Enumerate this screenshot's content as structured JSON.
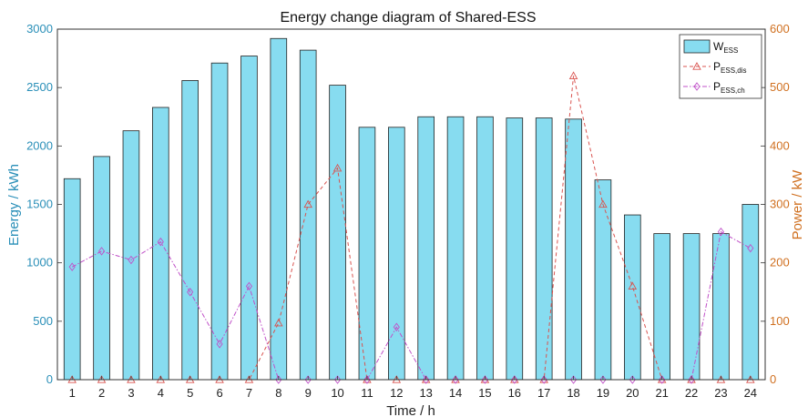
{
  "chart_data": {
    "type": "bar",
    "title": "Energy change diagram of Shared-ESS",
    "xlabel": "Time / h",
    "ylabel_left": "Energy / kWh",
    "ylabel_right": "Power / kW",
    "categories": [
      "1",
      "2",
      "3",
      "4",
      "5",
      "6",
      "7",
      "8",
      "9",
      "10",
      "11",
      "12",
      "13",
      "14",
      "15",
      "16",
      "17",
      "18",
      "19",
      "20",
      "21",
      "22",
      "23",
      "24"
    ],
    "ylim_left": [
      0,
      3000
    ],
    "yticks_left": [
      0,
      500,
      1000,
      1500,
      2000,
      2500,
      3000
    ],
    "ylim_right": [
      0,
      600
    ],
    "yticks_right": [
      0,
      100,
      200,
      300,
      400,
      500,
      600
    ],
    "grid": false,
    "legend_position": "top-right",
    "series": [
      {
        "name": "W",
        "name_sub": "ESS",
        "kind": "bar",
        "axis": "left",
        "color": "#87dcf0",
        "values": [
          1720,
          1910,
          2130,
          2330,
          2560,
          2710,
          2770,
          2920,
          2820,
          2520,
          2160,
          2160,
          2250,
          2250,
          2250,
          2240,
          2240,
          2230,
          1710,
          1410,
          1250,
          1250,
          1250,
          1500
        ]
      },
      {
        "name": "P",
        "name_sub": "ESS,dis",
        "kind": "line",
        "axis": "right",
        "marker": "triangle",
        "color": "#d9534f",
        "values": [
          0,
          0,
          0,
          0,
          0,
          0,
          0,
          97,
          300,
          362,
          0,
          0,
          0,
          0,
          0,
          0,
          0,
          520,
          300,
          160,
          0,
          0,
          0,
          0
        ]
      },
      {
        "name": "P",
        "name_sub": "ESS,ch",
        "kind": "line",
        "axis": "right",
        "marker": "diamond",
        "color": "#c050c8",
        "values": [
          193,
          220,
          205,
          236,
          150,
          61,
          160,
          0,
          0,
          0,
          0,
          90,
          0,
          0,
          0,
          0,
          0,
          0,
          0,
          0,
          0,
          0,
          253,
          225
        ]
      }
    ]
  }
}
